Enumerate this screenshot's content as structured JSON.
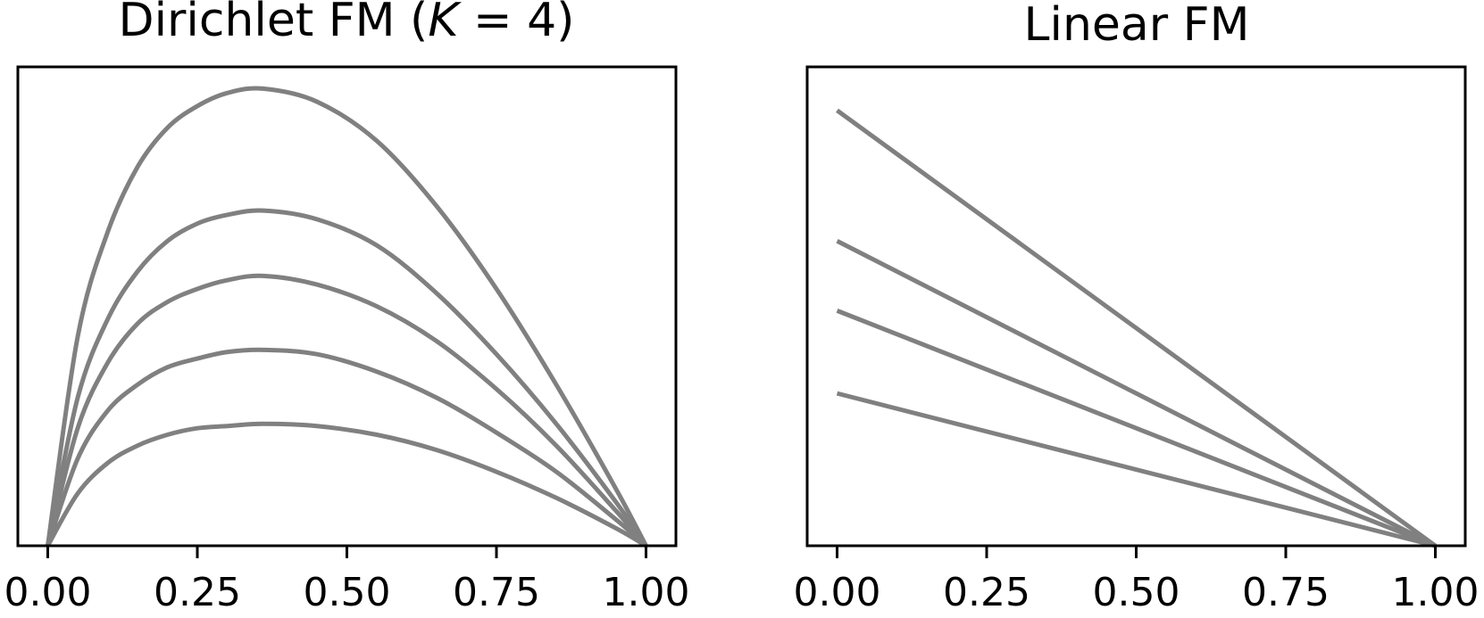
{
  "chart_data": [
    {
      "type": "line",
      "title": "Dirichlet FM (K = 4)",
      "title_parts": {
        "prefix": "Dirichlet FM (",
        "variable": "K",
        "relation": " = 4)"
      },
      "xlabel": "",
      "ylabel": "",
      "xlim": [
        -0.05,
        1.05
      ],
      "ylim": [
        0,
        1.1
      ],
      "xticks": [
        0.0,
        0.25,
        0.5,
        0.75,
        1.0
      ],
      "xtick_labels": [
        "0.00",
        "0.25",
        "0.50",
        "0.75",
        "1.00"
      ],
      "yticks_visible": false,
      "grid": false,
      "line_color": "#808080",
      "series": [
        {
          "x": [
            0.0,
            0.05,
            0.1,
            0.15,
            0.2,
            0.25,
            0.3,
            0.36,
            0.45,
            0.55,
            0.65,
            0.75,
            0.85,
            0.95,
            1.0
          ],
          "values": [
            0.0,
            0.48,
            0.72,
            0.87,
            0.96,
            1.01,
            1.04,
            1.05,
            1.02,
            0.93,
            0.78,
            0.59,
            0.37,
            0.13,
            0.0
          ]
        },
        {
          "x": [
            0.0,
            0.05,
            0.1,
            0.15,
            0.2,
            0.25,
            0.3,
            0.36,
            0.45,
            0.55,
            0.65,
            0.75,
            0.85,
            0.95,
            1.0
          ],
          "values": [
            0.0,
            0.34,
            0.52,
            0.63,
            0.7,
            0.74,
            0.76,
            0.77,
            0.75,
            0.69,
            0.58,
            0.44,
            0.28,
            0.1,
            0.0
          ]
        },
        {
          "x": [
            0.0,
            0.05,
            0.1,
            0.15,
            0.2,
            0.25,
            0.3,
            0.36,
            0.45,
            0.55,
            0.65,
            0.75,
            0.85,
            0.95,
            1.0
          ],
          "values": [
            0.0,
            0.27,
            0.42,
            0.51,
            0.56,
            0.59,
            0.61,
            0.62,
            0.6,
            0.55,
            0.47,
            0.36,
            0.23,
            0.08,
            0.0
          ]
        },
        {
          "x": [
            0.0,
            0.05,
            0.1,
            0.15,
            0.2,
            0.25,
            0.3,
            0.36,
            0.45,
            0.55,
            0.65,
            0.75,
            0.85,
            0.95,
            1.0
          ],
          "values": [
            0.0,
            0.2,
            0.31,
            0.37,
            0.41,
            0.43,
            0.445,
            0.45,
            0.44,
            0.4,
            0.34,
            0.26,
            0.17,
            0.06,
            0.0
          ]
        },
        {
          "x": [
            0.0,
            0.05,
            0.1,
            0.15,
            0.2,
            0.25,
            0.3,
            0.36,
            0.45,
            0.55,
            0.65,
            0.75,
            0.85,
            0.95,
            1.0
          ],
          "values": [
            0.0,
            0.12,
            0.19,
            0.23,
            0.255,
            0.27,
            0.275,
            0.28,
            0.275,
            0.255,
            0.22,
            0.17,
            0.11,
            0.04,
            0.0
          ]
        }
      ]
    },
    {
      "type": "line",
      "title": "Linear FM",
      "xlabel": "",
      "ylabel": "",
      "xlim": [
        -0.05,
        1.05
      ],
      "ylim": [
        0,
        1.1
      ],
      "xticks": [
        0.0,
        0.25,
        0.5,
        0.75,
        1.0
      ],
      "xtick_labels": [
        "0.00",
        "0.25",
        "0.50",
        "0.75",
        "1.00"
      ],
      "yticks_visible": false,
      "grid": false,
      "line_color": "#808080",
      "series": [
        {
          "x": [
            0.0,
            1.0
          ],
          "values": [
            1.0,
            0.0
          ]
        },
        {
          "x": [
            0.0,
            1.0
          ],
          "values": [
            0.7,
            0.0
          ]
        },
        {
          "x": [
            0.0,
            1.0
          ],
          "values": [
            0.54,
            0.0
          ]
        },
        {
          "x": [
            0.0,
            1.0
          ],
          "values": [
            0.35,
            0.0
          ]
        }
      ]
    }
  ]
}
